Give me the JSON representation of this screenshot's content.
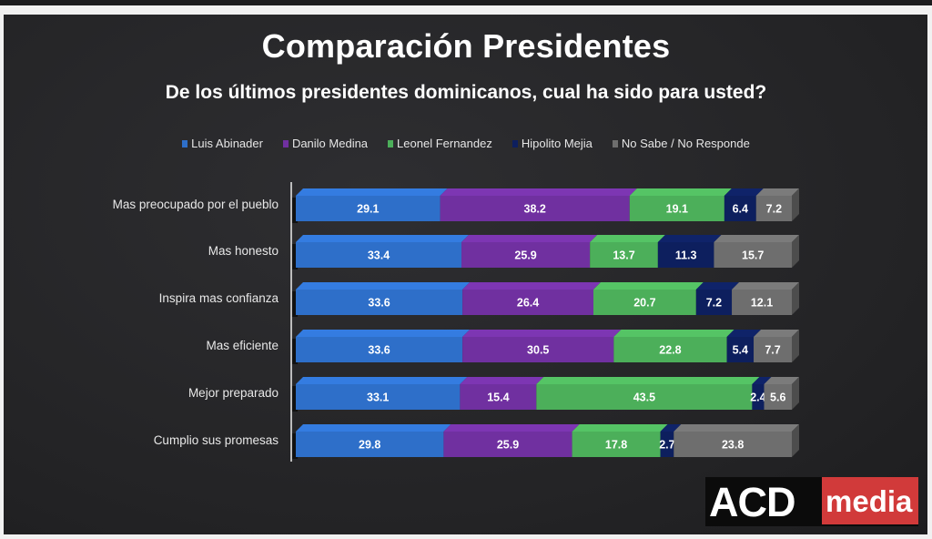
{
  "header": {
    "title": "Comparación Presidentes",
    "subtitle": "De los últimos presidentes dominicanos, cual ha sido para usted?"
  },
  "logo": {
    "brand": "ACD",
    "suffix": "media",
    "colors": {
      "background": "#0b0b0b",
      "accent": "#d13a3a"
    }
  },
  "chart_data": {
    "type": "bar",
    "orientation": "horizontal",
    "stacked": true,
    "title": "Comparación Presidentes",
    "subtitle": "De los últimos presidentes dominicanos, cual ha sido para usted?",
    "xlabel": "",
    "ylabel": "",
    "xlim": [
      0,
      100
    ],
    "grid": false,
    "legend_position": "top",
    "categories": [
      "Mas preocupado por el pueblo",
      "Mas honesto",
      "Inspira mas confianza",
      "Mas eficiente",
      "Mejor preparado",
      "Cumplio sus promesas"
    ],
    "series": [
      {
        "name": "Luis Abinader",
        "color": "#2e6fc9",
        "values": [
          29.1,
          33.4,
          33.6,
          33.6,
          33.1,
          29.8
        ]
      },
      {
        "name": "Danilo Medina",
        "color": "#7030a0",
        "values": [
          38.2,
          25.9,
          26.4,
          30.5,
          15.4,
          25.9
        ]
      },
      {
        "name": "Leonel Fernandez",
        "color": "#4caf5a",
        "values": [
          19.1,
          13.7,
          20.7,
          22.8,
          43.5,
          17.8
        ]
      },
      {
        "name": "Hipolito Mejia",
        "color": "#0d1f5e",
        "values": [
          6.4,
          11.3,
          7.2,
          5.4,
          2.4,
          2.7
        ]
      },
      {
        "name": "No Sabe / No Responde",
        "color": "#6e6e6e",
        "values": [
          7.2,
          15.7,
          12.1,
          7.7,
          5.6,
          23.8
        ]
      }
    ]
  }
}
